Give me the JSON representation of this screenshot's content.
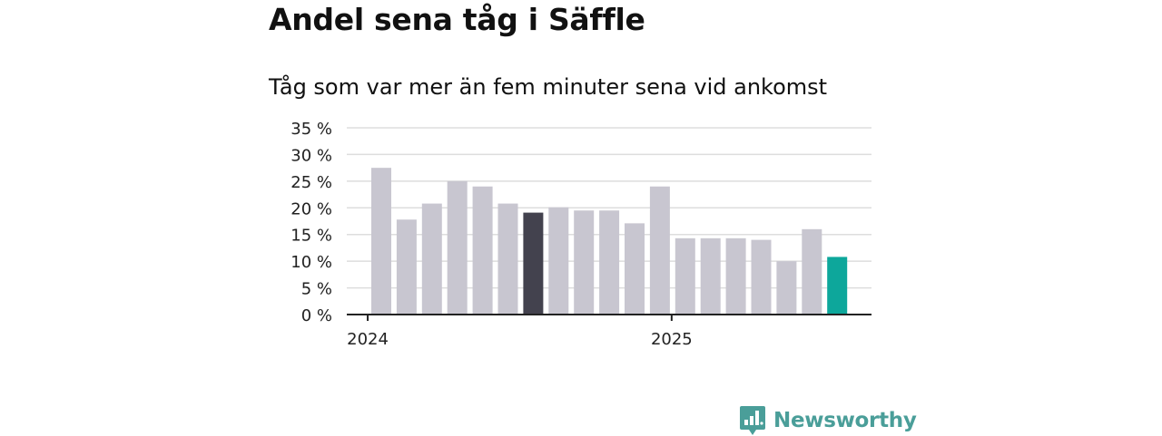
{
  "title": "Andel sena tåg i Säffle",
  "subtitle": "Tåg som var mer än fem minuter sena vid ankomst",
  "brand": "Newsworthy",
  "colors": {
    "bar": "#c8c6d0",
    "highlight": "#43424e",
    "latest": "#0da79b",
    "grid": "#dddddd",
    "axis": "#222222",
    "brand": "#4a9e99"
  },
  "chart_data": {
    "type": "bar",
    "values": [
      27.5,
      17.8,
      20.8,
      25.0,
      24.0,
      20.8,
      19.1,
      20.1,
      19.5,
      19.5,
      17.1,
      24.0,
      14.3,
      14.3,
      14.3,
      14.0,
      10.0,
      16.0,
      10.8
    ],
    "highlight_index": 6,
    "latest_index": 18,
    "x_ticks": [
      {
        "index": 0,
        "label": "2024"
      },
      {
        "index": 12,
        "label": "2025"
      }
    ],
    "y_ticks": [
      0,
      5,
      10,
      15,
      20,
      25,
      30,
      35
    ],
    "y_tick_labels": [
      "0 %",
      "5 %",
      "10 %",
      "15 %",
      "20 %",
      "25 %",
      "30 %",
      "35 %"
    ],
    "ylim": [
      0,
      35
    ],
    "grid": true,
    "legend": "none"
  }
}
